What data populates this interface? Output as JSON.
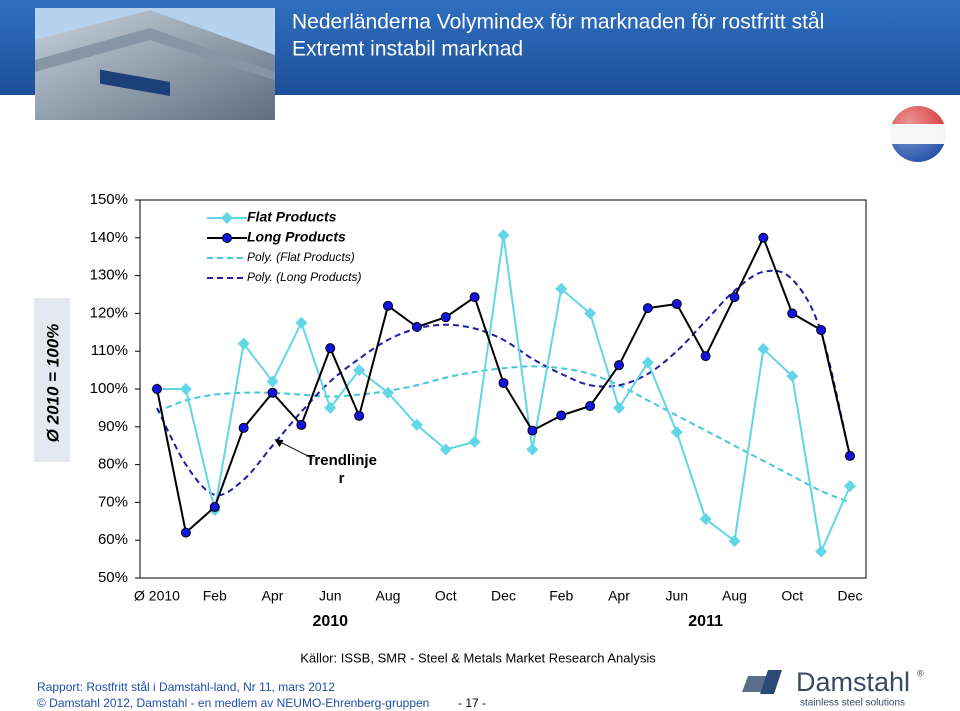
{
  "chart_data": {
    "type": "line",
    "title": "Nederländerna  Volymindex för marknaden för rostfritt stål",
    "subtitle": "Extremt instabil marknad",
    "y_label": "Ø 2010 = 100%",
    "categories": [
      "Ø 2010",
      null,
      "Feb",
      null,
      "Apr",
      null,
      "Jun",
      null,
      "Aug",
      null,
      "Oct",
      null,
      "Dec",
      null,
      "Feb",
      null,
      "Apr",
      null,
      "Jun",
      null,
      "Aug",
      null,
      "Oct",
      null,
      "Dec"
    ],
    "year_labels": [
      {
        "label": "2010",
        "index": 6
      },
      {
        "label": "2011",
        "index": 19
      }
    ],
    "ylim": [
      50,
      150
    ],
    "yticks": [
      {
        "value": 50,
        "label": "50%"
      },
      {
        "value": 60,
        "label": "60%"
      },
      {
        "value": 70,
        "label": "70%"
      },
      {
        "value": 80,
        "label": "80%"
      },
      {
        "value": 90,
        "label": "90%"
      },
      {
        "value": 100,
        "label": "100%"
      },
      {
        "value": 110,
        "label": "110%"
      },
      {
        "value": 120,
        "label": "120%"
      },
      {
        "value": 130,
        "label": "130%"
      },
      {
        "value": 140,
        "label": "140%"
      },
      {
        "value": 150,
        "label": "150%"
      }
    ],
    "grid": false,
    "legend": "upper left",
    "series": [
      {
        "name": "Flat Products",
        "color": "#62d6e6",
        "marker": "diamond",
        "marker_color": "#62d6e6",
        "dash": false,
        "values": [
          100,
          100,
          68,
          112,
          102,
          117.5,
          95,
          105,
          99,
          90.5,
          84,
          86,
          140.7,
          84,
          126.5,
          120,
          95,
          107,
          88.6,
          65.6,
          59.8,
          110.6,
          103.4,
          57,
          74.3
        ]
      },
      {
        "name": "Long Products",
        "color": "#000000",
        "marker": "circle",
        "marker_color": "#1414e0",
        "dash": false,
        "values": [
          100,
          62,
          68.8,
          89.7,
          99,
          90.5,
          110.8,
          92.9,
          122,
          116.4,
          119,
          124.3,
          101.6,
          89,
          93,
          95.5,
          106.3,
          121.4,
          122.5,
          108.7,
          124.3,
          140,
          120,
          115.6,
          82.3
        ]
      },
      {
        "name": "Poly. (Flat Products)",
        "color": "#44c8d8",
        "marker": "none",
        "dash": true,
        "values": [
          94,
          97,
          98.5,
          99,
          99,
          98.5,
          98,
          98.5,
          99.5,
          101,
          103,
          104.5,
          105.5,
          106,
          105.5,
          104,
          101,
          97,
          93,
          89,
          85,
          81,
          77,
          73,
          70
        ]
      },
      {
        "name": "Poly. (Long Products)",
        "color": "#1f1fa8",
        "marker": "none",
        "dash": true,
        "values": [
          95,
          80,
          72,
          76,
          85,
          94,
          102,
          108,
          113,
          116,
          117,
          116,
          113,
          108,
          104,
          101,
          101,
          104,
          110,
          118,
          126,
          131,
          129,
          115,
          82
        ]
      }
    ],
    "annotation": {
      "text": "Trendlinje r",
      "target_index": 4,
      "target_value": 87
    }
  },
  "source": "Källor: ISSB, SMR - Steel & Metals Market Research Analysis",
  "footer": {
    "report": "Rapport: Rostfritt stål i Damstahl-land, Nr 11, mars 2012",
    "copyright": "© Damstahl 2012, Damstahl - en medlem av NEUMO-Ehrenberg-gruppen",
    "page": "- 17 -"
  },
  "logo": {
    "name": "Damstahl",
    "mark": "®",
    "tagline": "stainless steel solutions"
  }
}
